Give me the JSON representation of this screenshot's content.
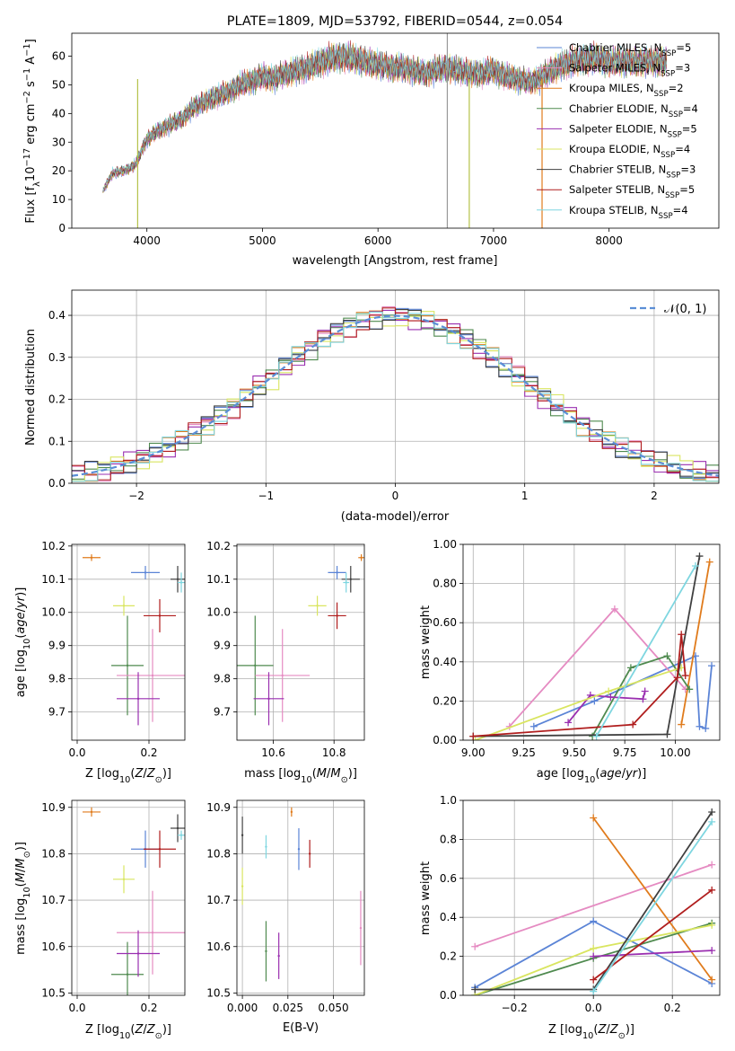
{
  "chart_data": [
    {
      "type": "line",
      "title": "PLATE=1809, MJD=53792, FIBERID=0544, z=0.054",
      "xlabel": "wavelength [Angstrom, rest frame]",
      "ylabel": "Flux [f_λ10^-17 erg cm^-2 s^-1 A^-1]",
      "xlim": [
        3350,
        8950
      ],
      "ylim": [
        0,
        68
      ],
      "xticks": [
        4000,
        5000,
        6000,
        7000,
        8000
      ],
      "yticks": [
        0,
        10,
        20,
        30,
        40,
        50,
        60
      ],
      "grid": false,
      "legend_position": "top-right",
      "legend": [
        {
          "label": "Chabrier MILES, N_SSP=5",
          "color": "#5b84d6"
        },
        {
          "label": "Salpeter MILES, N_SSP=3",
          "color": "#e58bc2"
        },
        {
          "label": "Kroupa MILES, N_SSP=2",
          "color": "#e07b1c"
        },
        {
          "label": "Chabrier ELODIE, N_SSP=4",
          "color": "#4f8a4f"
        },
        {
          "label": "Salpeter ELODIE, N_SSP=5",
          "color": "#9a2fb0"
        },
        {
          "label": "Kroupa ELODIE, N_SSP=4",
          "color": "#d9e560"
        },
        {
          "label": "Chabrier STELIB, N_SSP=3",
          "color": "#404040"
        },
        {
          "label": "Salpeter STELIB, N_SSP=5",
          "color": "#b01e1e"
        },
        {
          "label": "Kroupa STELIB, N_SSP=4",
          "color": "#7ed6e0"
        }
      ],
      "spectrum": {
        "x": [
          3620,
          3700,
          3800,
          3900,
          4000,
          4100,
          4200,
          4300,
          4400,
          4500,
          4600,
          4700,
          4800,
          4900,
          5000,
          5100,
          5200,
          5300,
          5400,
          5500,
          5600,
          5700,
          5800,
          5900,
          6000,
          6100,
          6200,
          6300,
          6400,
          6500,
          6600,
          6700,
          6800,
          6900,
          7000,
          7100,
          7200,
          7300,
          7400,
          7500,
          7600,
          7700,
          7800,
          7900,
          8000,
          8100,
          8200,
          8300,
          8400,
          8500
        ],
        "y": [
          13,
          19,
          20,
          22,
          31,
          34,
          36,
          38,
          42,
          44,
          46,
          47,
          50,
          51,
          53,
          52,
          54,
          55,
          56,
          58,
          59,
          60,
          59,
          58,
          57,
          56,
          56,
          55,
          54,
          55,
          56,
          55,
          54,
          54,
          55,
          53,
          52,
          51,
          52,
          55,
          57,
          58,
          59,
          59,
          58,
          58,
          58,
          58,
          58,
          58
        ]
      }
    },
    {
      "type": "step",
      "xlabel": "(data-model)/error",
      "ylabel": "Normed distribution",
      "xlim": [
        -2.5,
        2.5
      ],
      "ylim": [
        0,
        0.46
      ],
      "xticks": [
        -2,
        -1,
        0,
        1,
        2
      ],
      "yticks": [
        0.0,
        0.1,
        0.2,
        0.3,
        0.4
      ],
      "grid": true,
      "legend_position": "top-right",
      "legend": [
        {
          "label": "N(0,1)",
          "style": "dashed",
          "color": "#5b8ed6"
        }
      ],
      "bins": {
        "start": -2.5,
        "width": 0.1,
        "series_offsets": [
          0.006,
          -0.012,
          0.014,
          -0.006,
          0.018,
          -0.015,
          0.009,
          -0.004,
          0.012
        ]
      }
    },
    {
      "type": "scatter",
      "xlabel": "Z [log10(Z/Z☉)]",
      "ylabel": "age  [log10(age/yr)]",
      "xlim": [
        -0.015,
        0.3
      ],
      "ylim": [
        9.615,
        10.205
      ],
      "xticks": [
        0.0,
        0.2
      ],
      "yticks": [
        9.7,
        9.8,
        9.9,
        10.0,
        10.1,
        10.2
      ],
      "grid": true,
      "points": [
        {
          "color": "#e07b1c",
          "x": 0.04,
          "y": 10.165,
          "xerr": 0.025,
          "yerr": 0.01
        },
        {
          "color": "#5b84d6",
          "x": 0.19,
          "y": 10.12,
          "xerr": 0.04,
          "yerr": 0.02
        },
        {
          "color": "#404040",
          "x": 0.28,
          "y": 10.1,
          "xerr": 0.02,
          "yerr": 0.04
        },
        {
          "color": "#7ed6e0",
          "x": 0.29,
          "y": 10.09,
          "xerr": 0.01,
          "yerr": 0.03
        },
        {
          "color": "#d9e560",
          "x": 0.13,
          "y": 10.02,
          "xerr": 0.03,
          "yerr": 0.03
        },
        {
          "color": "#b01e1e",
          "x": 0.23,
          "y": 9.99,
          "xerr": 0.045,
          "yerr": 0.05
        },
        {
          "color": "#4f8a4f",
          "x": 0.14,
          "y": 9.84,
          "xerr": 0.045,
          "yerr": 0.15
        },
        {
          "color": "#e58bc2",
          "x": 0.21,
          "y": 9.81,
          "xerr": 0.1,
          "yerr": 0.14
        },
        {
          "color": "#9a2fb0",
          "x": 0.17,
          "y": 9.74,
          "xerr": 0.06,
          "yerr": 0.08
        }
      ]
    },
    {
      "type": "scatter",
      "xlabel": "mass [log10(M/M☉)]",
      "ylabel": "",
      "xlim": [
        10.48,
        10.9
      ],
      "ylim": [
        9.615,
        10.205
      ],
      "xticks": [
        10.6,
        10.8
      ],
      "yticks": [
        9.7,
        9.8,
        9.9,
        10.0,
        10.1,
        10.2
      ],
      "grid": true,
      "points": [
        {
          "color": "#e07b1c",
          "x": 10.89,
          "y": 10.165,
          "xerr": 0.01,
          "yerr": 0.01
        },
        {
          "color": "#5b84d6",
          "x": 10.81,
          "y": 10.12,
          "xerr": 0.03,
          "yerr": 0.02
        },
        {
          "color": "#404040",
          "x": 10.855,
          "y": 10.1,
          "xerr": 0.03,
          "yerr": 0.04
        },
        {
          "color": "#7ed6e0",
          "x": 10.84,
          "y": 10.09,
          "xerr": 0.01,
          "yerr": 0.03
        },
        {
          "color": "#d9e560",
          "x": 10.745,
          "y": 10.02,
          "xerr": 0.03,
          "yerr": 0.03
        },
        {
          "color": "#b01e1e",
          "x": 10.81,
          "y": 9.99,
          "xerr": 0.03,
          "yerr": 0.04
        },
        {
          "color": "#4f8a4f",
          "x": 10.54,
          "y": 9.84,
          "xerr": 0.06,
          "yerr": 0.15
        },
        {
          "color": "#e58bc2",
          "x": 10.63,
          "y": 9.81,
          "xerr": 0.09,
          "yerr": 0.14
        },
        {
          "color": "#9a2fb0",
          "x": 10.585,
          "y": 9.74,
          "xerr": 0.05,
          "yerr": 0.08
        }
      ]
    },
    {
      "type": "line",
      "xlabel": "age  [log10(age/yr)]",
      "ylabel": "mass weight",
      "xlim": [
        8.95,
        10.22
      ],
      "ylim": [
        0,
        1.0
      ],
      "xticks": [
        9.0,
        9.25,
        9.5,
        9.75,
        10.0
      ],
      "yticks": [
        0.0,
        0.2,
        0.4,
        0.6,
        0.8,
        1.0
      ],
      "grid": true,
      "series": [
        {
          "color": "#5b84d6",
          "x": [
            9.3,
            9.6,
            10.1,
            10.12,
            10.15,
            10.18
          ],
          "y": [
            0.07,
            0.2,
            0.43,
            0.07,
            0.06,
            0.38
          ]
        },
        {
          "color": "#e58bc2",
          "x": [
            9.18,
            9.7,
            10.05
          ],
          "y": [
            0.07,
            0.67,
            0.26
          ]
        },
        {
          "color": "#e07b1c",
          "x": [
            10.03,
            10.17
          ],
          "y": [
            0.08,
            0.91
          ]
        },
        {
          "color": "#4f8a4f",
          "x": [
            9.59,
            9.78,
            9.96,
            10.07
          ],
          "y": [
            0.02,
            0.37,
            0.43,
            0.26
          ]
        },
        {
          "color": "#9a2fb0",
          "x": [
            9.47,
            9.58,
            9.68,
            9.84,
            9.85
          ],
          "y": [
            0.09,
            0.23,
            0.22,
            0.21,
            0.25
          ]
        },
        {
          "color": "#d9e560",
          "x": [
            9.01,
            9.67,
            10.03
          ],
          "y": [
            0.0,
            0.25,
            0.37
          ]
        },
        {
          "color": "#404040",
          "x": [
            9.0,
            9.96,
            10.12
          ],
          "y": [
            0.02,
            0.03,
            0.94
          ]
        },
        {
          "color": "#b01e1e",
          "x": [
            9.0,
            9.79,
            10.01,
            10.03,
            10.05
          ],
          "y": [
            0.02,
            0.08,
            0.32,
            0.54,
            0.33
          ]
        },
        {
          "color": "#7ed6e0",
          "x": [
            9.61,
            10.1
          ],
          "y": [
            0.02,
            0.89
          ]
        }
      ]
    },
    {
      "type": "scatter",
      "xlabel": "Z [log10(Z/Z☉)]",
      "ylabel": "mass [log10(M/M☉)]",
      "xlim": [
        -0.015,
        0.3
      ],
      "ylim": [
        10.495,
        10.915
      ],
      "xticks": [
        0.0,
        0.2
      ],
      "yticks": [
        10.5,
        10.6,
        10.7,
        10.8,
        10.9
      ],
      "grid": true,
      "points": [
        {
          "color": "#e07b1c",
          "x": 0.04,
          "y": 10.89,
          "xerr": 0.025,
          "yerr": 0.01
        },
        {
          "color": "#5b84d6",
          "x": 0.19,
          "y": 10.81,
          "xerr": 0.04,
          "yerr": 0.04
        },
        {
          "color": "#404040",
          "x": 0.28,
          "y": 10.855,
          "xerr": 0.02,
          "yerr": 0.03
        },
        {
          "color": "#7ed6e0",
          "x": 0.29,
          "y": 10.84,
          "xerr": 0.01,
          "yerr": 0.01
        },
        {
          "color": "#d9e560",
          "x": 0.13,
          "y": 10.745,
          "xerr": 0.03,
          "yerr": 0.03
        },
        {
          "color": "#b01e1e",
          "x": 0.23,
          "y": 10.81,
          "xerr": 0.045,
          "yerr": 0.04
        },
        {
          "color": "#4f8a4f",
          "x": 0.14,
          "y": 10.54,
          "xerr": 0.045,
          "yerr": 0.07
        },
        {
          "color": "#e58bc2",
          "x": 0.21,
          "y": 10.63,
          "xerr": 0.1,
          "yerr": 0.09
        },
        {
          "color": "#9a2fb0",
          "x": 0.17,
          "y": 10.585,
          "xerr": 0.06,
          "yerr": 0.05
        }
      ]
    },
    {
      "type": "scatter",
      "xlabel": "E(B-V)",
      "ylabel": "",
      "xlim": [
        -0.003,
        0.067
      ],
      "ylim": [
        10.495,
        10.915
      ],
      "xticks": [
        0.0,
        0.025,
        0.05
      ],
      "yticks": [
        10.5,
        10.6,
        10.7,
        10.8,
        10.9
      ],
      "grid": true,
      "points": [
        {
          "color": "#e07b1c",
          "x": 0.027,
          "y": 10.89,
          "xerr": 0.0,
          "yerr": 0.01
        },
        {
          "color": "#5b84d6",
          "x": 0.031,
          "y": 10.81,
          "xerr": 0.0,
          "yerr": 0.045
        },
        {
          "color": "#404040",
          "x": 0.0,
          "y": 10.84,
          "xerr": 0.0,
          "yerr": 0.04
        },
        {
          "color": "#7ed6e0",
          "x": 0.013,
          "y": 10.815,
          "xerr": 0.0,
          "yerr": 0.025
        },
        {
          "color": "#d9e560",
          "x": 0.0,
          "y": 10.73,
          "xerr": 0.0,
          "yerr": 0.04
        },
        {
          "color": "#b01e1e",
          "x": 0.037,
          "y": 10.8,
          "xerr": 0.0,
          "yerr": 0.03
        },
        {
          "color": "#4f8a4f",
          "x": 0.013,
          "y": 10.59,
          "xerr": 0.0,
          "yerr": 0.065
        },
        {
          "color": "#e58bc2",
          "x": 0.065,
          "y": 10.64,
          "xerr": 0.0,
          "yerr": 0.08
        },
        {
          "color": "#9a2fb0",
          "x": 0.02,
          "y": 10.58,
          "xerr": 0.0,
          "yerr": 0.05
        }
      ]
    },
    {
      "type": "line",
      "xlabel": "Z [log10(Z/Z☉)]",
      "ylabel": "mass weight",
      "xlim": [
        -0.33,
        0.32
      ],
      "ylim": [
        0,
        1.0
      ],
      "xticks": [
        -0.2,
        0.0,
        0.2
      ],
      "yticks": [
        0.0,
        0.2,
        0.4,
        0.6,
        0.8,
        1.0
      ],
      "grid": true,
      "series": [
        {
          "color": "#5b84d6",
          "x": [
            -0.3,
            0.0,
            0.3
          ],
          "y": [
            0.04,
            0.38,
            0.06
          ]
        },
        {
          "color": "#e58bc2",
          "x": [
            -0.3,
            0.3
          ],
          "y": [
            0.25,
            0.67
          ]
        },
        {
          "color": "#e07b1c",
          "x": [
            0.0,
            0.3
          ],
          "y": [
            0.91,
            0.08
          ]
        },
        {
          "color": "#4f8a4f",
          "x": [
            -0.3,
            0.0,
            0.3
          ],
          "y": [
            0.0,
            0.19,
            0.37
          ]
        },
        {
          "color": "#9a2fb0",
          "x": [
            0.0,
            0.3
          ],
          "y": [
            0.2,
            0.23
          ]
        },
        {
          "color": "#d9e560",
          "x": [
            -0.3,
            0.0,
            0.3
          ],
          "y": [
            0.0,
            0.24,
            0.36
          ]
        },
        {
          "color": "#404040",
          "x": [
            -0.3,
            0.0,
            0.3
          ],
          "y": [
            0.03,
            0.03,
            0.94
          ]
        },
        {
          "color": "#b01e1e",
          "x": [
            0.0,
            0.3
          ],
          "y": [
            0.08,
            0.54
          ]
        },
        {
          "color": "#7ed6e0",
          "x": [
            0.0,
            0.3
          ],
          "y": [
            0.02,
            0.89
          ]
        }
      ]
    }
  ],
  "legend_normal_label": "N(0,1)"
}
